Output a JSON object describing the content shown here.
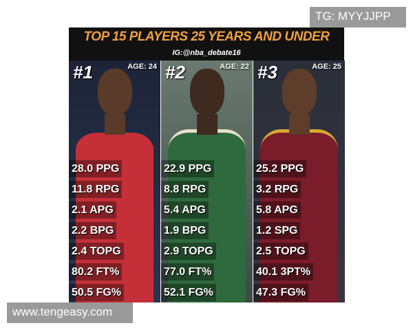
{
  "watermark_top": "TG: MYYJJPP",
  "header": {
    "title": "TOP 15 PLAYERS 25 YEARS AND UNDER",
    "subtitle": "IG:@nba_debate16"
  },
  "players": [
    {
      "rank": "#1",
      "age": "AGE: 24",
      "stats": [
        "28.0 PPG",
        "11.8 RPG",
        "2.1 APG",
        "2.2 BPG",
        "2.4 TOPG",
        "80.2 FT%",
        "50.5 FG%"
      ]
    },
    {
      "rank": "#2",
      "age": "AGE: 22",
      "stats": [
        "22.9 PPG",
        "8.8 RPG",
        "5.4 APG",
        "1.9 BPG",
        "2.9 TOPG",
        "77.0 FT%",
        "52.1 FG%"
      ]
    },
    {
      "rank": "#3",
      "age": "AGE: 25",
      "stats": [
        "25.2 PPG",
        "3.2 RPG",
        "5.8 APG",
        "1.2 SPG",
        "2.5 TOPG",
        "40.1 3PT%",
        "47.3 FG%"
      ]
    }
  ],
  "watermark_bottom": "www.tengeasy.com"
}
